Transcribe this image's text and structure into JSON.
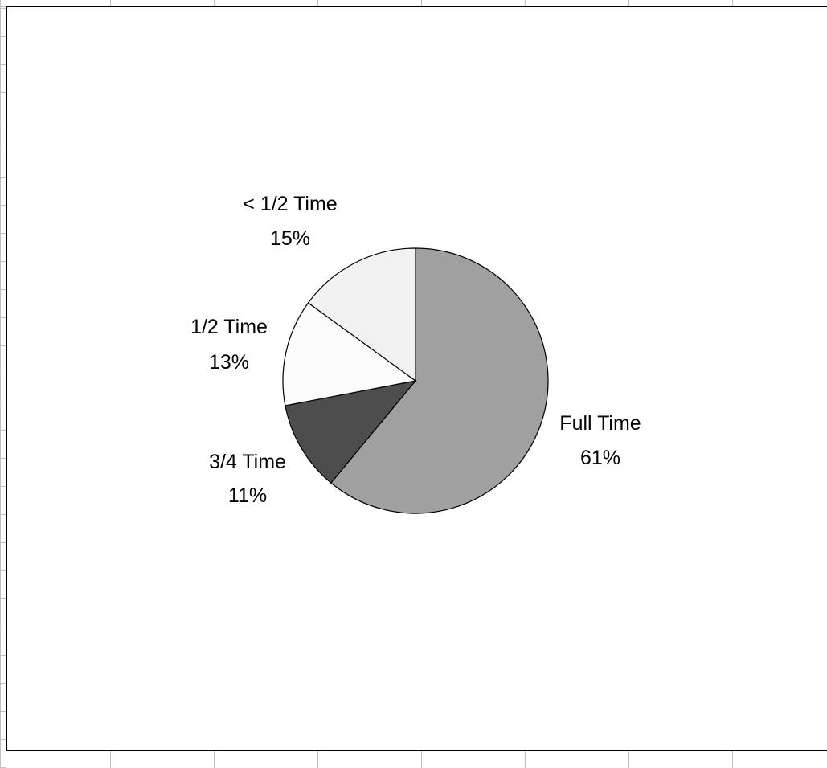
{
  "chart_data": {
    "type": "pie",
    "title": "",
    "slices": [
      {
        "label": "Full Time",
        "value": 61,
        "value_label": "61%",
        "color": "#a0a0a0"
      },
      {
        "label": "3/4 Time",
        "value": 11,
        "value_label": "11%",
        "color": "#4d4d4d"
      },
      {
        "label": "1/2 Time",
        "value": 13,
        "value_label": "13%",
        "color": "#fbfbfb"
      },
      {
        "label": "< 1/2 Time",
        "value": 15,
        "value_label": "15%",
        "color": "#f1f1f1"
      }
    ],
    "start_angle": "12 o'clock",
    "direction": "clockwise",
    "legend": "none",
    "data_labels": "category name and percentage"
  },
  "colors": {
    "background": "#ffffff",
    "gridline": "#c0c0c0",
    "chart_border": "#000000",
    "slice_outline": "#000000"
  }
}
